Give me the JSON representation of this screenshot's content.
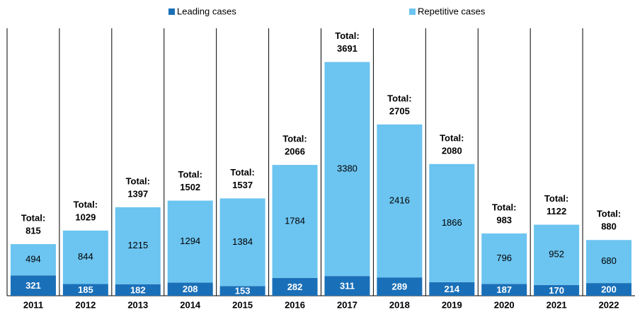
{
  "chart_data": {
    "type": "stacked_bar",
    "categories": [
      "2011",
      "2012",
      "2013",
      "2014",
      "2015",
      "2016",
      "2017",
      "2018",
      "2019",
      "2020",
      "2021",
      "2022"
    ],
    "series": [
      {
        "name": "Leading cases",
        "color": "#1a70b8",
        "values": [
          321,
          185,
          182,
          208,
          153,
          282,
          311,
          289,
          214,
          187,
          170,
          200
        ]
      },
      {
        "name": "Repetitive cases",
        "color": "#6cc4f0",
        "values": [
          494,
          844,
          1215,
          1294,
          1384,
          1784,
          3380,
          2416,
          1866,
          796,
          952,
          680
        ]
      }
    ],
    "total_label": "Total:",
    "totals": [
      815,
      1029,
      1397,
      1502,
      1537,
      2066,
      3691,
      2705,
      2080,
      983,
      1122,
      880
    ],
    "ylim": [
      0,
      4000
    ]
  }
}
